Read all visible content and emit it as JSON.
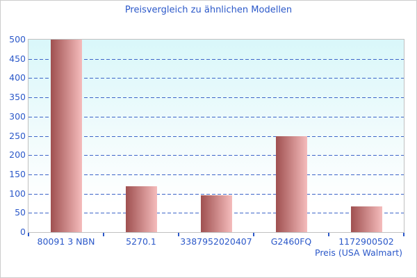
{
  "chart_data": {
    "type": "bar",
    "title": "Preisvergleich zu ähnlichen Modellen",
    "categories": [
      "80091 3 NBN",
      "5270.1",
      "3387952020407",
      "G2460FQ",
      "1172900502"
    ],
    "values": [
      500,
      120,
      95,
      250,
      67
    ],
    "xlabel": "Preis (USA Walmart)",
    "ylabel": "",
    "ylim": [
      0,
      500
    ],
    "ytick_step": 50,
    "yticks": [
      0,
      50,
      100,
      150,
      200,
      250,
      300,
      350,
      400,
      450,
      500
    ],
    "grid": "horizontal-dashed",
    "legend": "none"
  },
  "colors": {
    "text_blue": "#2b58c9",
    "grid_blue": "#3c64c8",
    "bar_dark": "#9f5050",
    "bar_light": "#f5bcbc",
    "plot_bg_top": "#d9f7fa",
    "plot_bg_mid": "#f0fbfc",
    "plot_bg_bottom": "#ffffff",
    "plot_border": "#c0c0c0",
    "canvas_border": "#cccccc"
  }
}
